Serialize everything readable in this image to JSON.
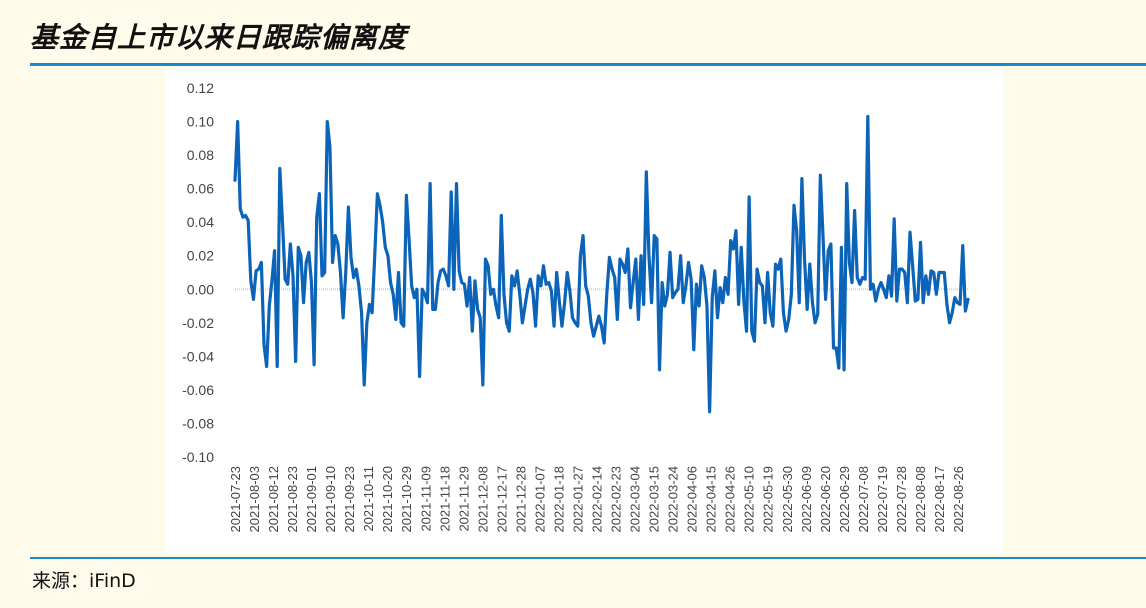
{
  "header": {
    "title": "基金自上市以来日跟踪偏离度"
  },
  "footer": {
    "source": "来源：iFinD"
  },
  "colors": {
    "line": "#0b64b8",
    "rule": "#1f86c8",
    "background": "#fefbea"
  },
  "chart_data": {
    "type": "line",
    "title": "",
    "xlabel": "",
    "ylabel": "",
    "ylim": [
      -0.1,
      0.12
    ],
    "yticks": [
      "0.12",
      "0.10",
      "0.08",
      "0.06",
      "0.04",
      "0.02",
      "0.00",
      "-0.02",
      "-0.04",
      "-0.06",
      "-0.08",
      "-0.10"
    ],
    "xticks": [
      "2021-07-23",
      "2021-08-03",
      "2021-08-12",
      "2021-08-23",
      "2021-09-01",
      "2021-09-10",
      "2021-09-23",
      "2021-10-11",
      "2021-10-20",
      "2021-10-29",
      "2021-11-09",
      "2021-11-18",
      "2021-11-29",
      "2021-12-08",
      "2021-12-17",
      "2021-12-28",
      "2022-01-07",
      "2022-01-18",
      "2022-01-27",
      "2022-02-14",
      "2022-02-23",
      "2022-03-04",
      "2022-03-15",
      "2022-03-24",
      "2022-04-06",
      "2022-04-15",
      "2022-04-26",
      "2022-05-10",
      "2022-05-19",
      "2022-05-30",
      "2022-06-09",
      "2022-06-20",
      "2022-06-29",
      "2022-07-08",
      "2022-07-19",
      "2022-07-28",
      "2022-08-08",
      "2022-08-17",
      "2022-08-26"
    ],
    "grid": false,
    "legend": "none",
    "series": [
      {
        "values": [
          0.065,
          0.1,
          0.048,
          0.043,
          0.044,
          0.041,
          0.005,
          -0.006,
          0.011,
          0.012,
          0.016,
          -0.033,
          -0.046,
          -0.01,
          0.005,
          0.023,
          -0.046,
          0.072,
          0.04,
          0.006,
          0.003,
          0.027,
          0.008,
          -0.043,
          0.025,
          0.02,
          -0.008,
          0.016,
          0.022,
          0.004,
          -0.045,
          0.043,
          0.057,
          0.008,
          0.01,
          0.1,
          0.085,
          0.016,
          0.032,
          0.027,
          0.01,
          -0.017,
          0.01,
          0.049,
          0.019,
          0.007,
          0.012,
          0.002,
          -0.014,
          -0.057,
          -0.02,
          -0.009,
          -0.014,
          0.02,
          0.057,
          0.05,
          0.04,
          0.025,
          0.02,
          0.004,
          -0.003,
          -0.018,
          0.01,
          -0.02,
          -0.022,
          0.056,
          0.03,
          0.002,
          -0.005,
          0.0,
          -0.052,
          0.0,
          -0.003,
          -0.008,
          0.063,
          -0.012,
          -0.012,
          0.004,
          0.011,
          0.012,
          0.008,
          0.002,
          0.058,
          0.0,
          0.063,
          0.011,
          0.004,
          0.003,
          -0.01,
          0.007,
          -0.025,
          0.005,
          -0.012,
          -0.017,
          -0.057,
          0.018,
          0.014,
          -0.003,
          0.0,
          -0.01,
          -0.017,
          0.044,
          -0.003,
          -0.02,
          -0.025,
          0.008,
          0.002,
          0.011,
          -0.003,
          -0.02,
          -0.01,
          0.0,
          0.006,
          -0.002,
          -0.022,
          0.008,
          0.002,
          0.014,
          0.003,
          0.004,
          -0.001,
          -0.022,
          0.01,
          -0.007,
          -0.022,
          -0.008,
          0.01,
          -0.001,
          -0.017,
          -0.02,
          -0.022,
          0.02,
          0.032,
          0.002,
          -0.004,
          -0.02,
          -0.028,
          -0.022,
          -0.016,
          -0.022,
          -0.032,
          -0.003,
          0.019,
          0.012,
          0.007,
          -0.018,
          0.018,
          0.015,
          0.01,
          0.024,
          -0.011,
          0.004,
          0.018,
          -0.018,
          0.02,
          -0.009,
          0.07,
          0.02,
          -0.008,
          0.032,
          0.03,
          -0.048,
          0.004,
          -0.01,
          -0.003,
          0.022,
          -0.005,
          -0.002,
          0.0,
          0.02,
          -0.008,
          0.002,
          0.016,
          0.006,
          -0.036,
          0.003,
          -0.01,
          0.014,
          0.007,
          -0.01,
          -0.073,
          -0.005,
          0.011,
          -0.017,
          0.001,
          -0.008,
          0.007,
          -0.003,
          0.029,
          0.024,
          0.035,
          -0.009,
          0.025,
          -0.007,
          -0.025,
          0.055,
          -0.025,
          -0.031,
          0.012,
          0.004,
          0.002,
          -0.02,
          0.01,
          -0.014,
          -0.022,
          0.015,
          0.012,
          0.018,
          -0.014,
          -0.025,
          -0.018,
          -0.003,
          0.05,
          0.035,
          -0.008,
          0.066,
          0.018,
          -0.012,
          0.015,
          -0.008,
          -0.02,
          -0.015,
          0.068,
          0.032,
          -0.006,
          0.023,
          0.027,
          -0.035,
          -0.035,
          -0.047,
          0.025,
          -0.048,
          0.063,
          0.016,
          0.004,
          0.047,
          0.007,
          0.003,
          0.007,
          0.006,
          0.103,
          0.0,
          0.003,
          -0.007,
          0.0,
          0.004,
          0.0,
          -0.005,
          0.008,
          -0.004,
          0.042,
          -0.007,
          0.012,
          0.012,
          0.01,
          -0.008,
          0.034,
          0.014,
          -0.007,
          -0.006,
          0.028,
          -0.008,
          0.008,
          -0.003,
          0.011,
          0.01,
          -0.003,
          0.01,
          0.01,
          0.01,
          -0.009,
          -0.02,
          -0.014,
          -0.005,
          -0.008,
          -0.009,
          0.026,
          -0.013,
          -0.006
        ]
      }
    ]
  }
}
